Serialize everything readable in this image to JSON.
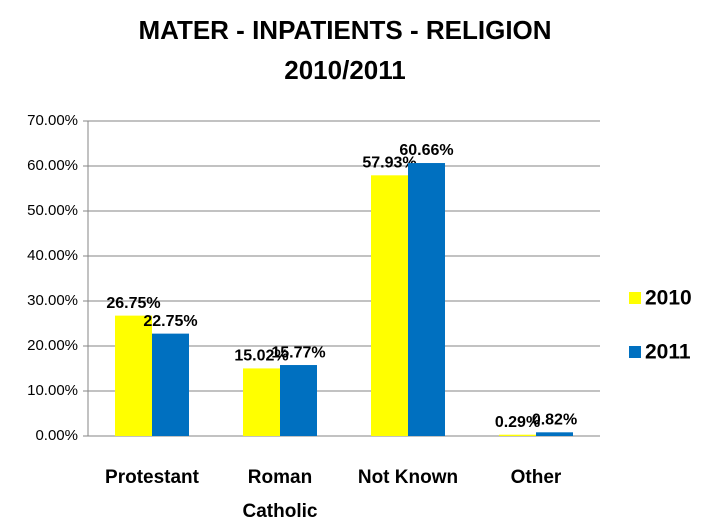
{
  "chart_data": {
    "type": "bar",
    "title": [
      "MATER - INPATIENTS - RELIGION",
      "2010/2011"
    ],
    "categories": [
      "Protestant",
      "Roman Catholic",
      "Not Known",
      "Other"
    ],
    "series": [
      {
        "name": "2010",
        "color": "#ffff00",
        "values": [
          26.75,
          15.02,
          57.93,
          0.29
        ],
        "value_labels": [
          "26.75%",
          "15.02%",
          "57.93%",
          "0.29%"
        ]
      },
      {
        "name": "2011",
        "color": "#0070c0",
        "values": [
          22.75,
          15.77,
          60.66,
          0.82
        ],
        "value_labels": [
          "22.75%",
          "15.77%",
          "60.66%",
          "0.82%"
        ]
      }
    ],
    "ylim": [
      0,
      70
    ],
    "yticks": [
      {
        "value": 0,
        "label": "0.00%"
      },
      {
        "value": 10,
        "label": "10.00%"
      },
      {
        "value": 20,
        "label": "20.00%"
      },
      {
        "value": 30,
        "label": "30.00%"
      },
      {
        "value": 40,
        "label": "40.00%"
      },
      {
        "value": 50,
        "label": "50.00%"
      },
      {
        "value": 60,
        "label": "60.00%"
      },
      {
        "value": 70,
        "label": "70.00%"
      }
    ],
    "grid": true,
    "legend": "right"
  }
}
